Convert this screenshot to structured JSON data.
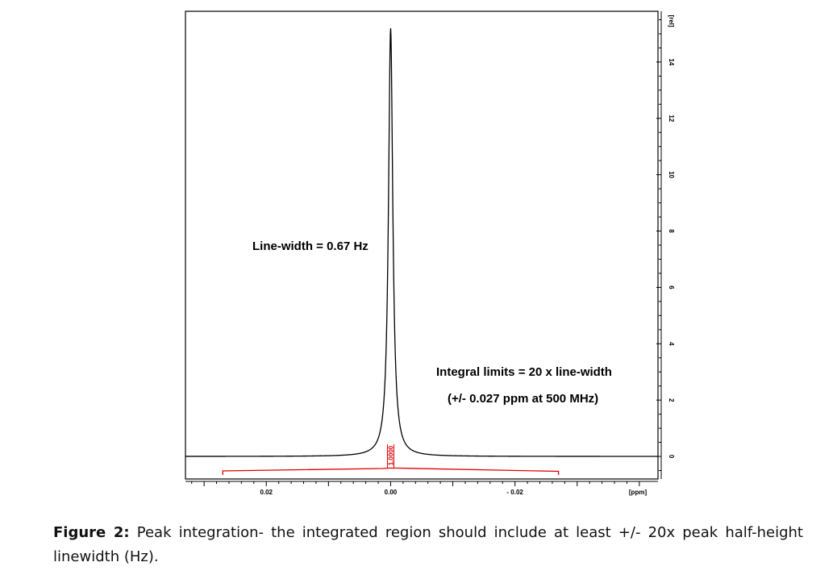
{
  "chart_data": {
    "type": "line",
    "x_axis": {
      "unit_label": "[ppm]",
      "reversed": true,
      "range": [
        0.033,
        -0.043
      ],
      "ticks": [
        0.02,
        0.0,
        -0.02
      ],
      "tick_labels": [
        "0.02",
        "0.00",
        "- 0.02"
      ]
    },
    "y_axis": {
      "unit_label": "[rel]",
      "position": "right",
      "range": [
        -0.8,
        15.8
      ],
      "ticks": [
        0,
        2,
        4,
        6,
        8,
        10,
        12,
        14
      ],
      "tick_labels": [
        "0",
        "2",
        "4",
        "6",
        "8",
        "10",
        "12",
        "14"
      ]
    },
    "series": [
      {
        "color": "#000000",
        "peak": {
          "x": 0.0,
          "y": 15.2
        },
        "baseline": 0.0
      }
    ],
    "integral": {
      "color": "#e00000",
      "limits": [
        0.027,
        -0.027
      ],
      "value_label": "1.0000"
    },
    "annotations": [
      {
        "id": "linewidth",
        "text": "Line-width = 0.67 Hz"
      },
      {
        "id": "limits1",
        "text": "Integral limits = 20 x line-width"
      },
      {
        "id": "limits2",
        "text": "(+/- 0.027 ppm at 500 MHz)"
      }
    ]
  },
  "caption": {
    "label": "Figure 2:",
    "text": " Peak integration- the integrated region should include at least +/- 20x peak half-height linewidth (Hz)."
  }
}
